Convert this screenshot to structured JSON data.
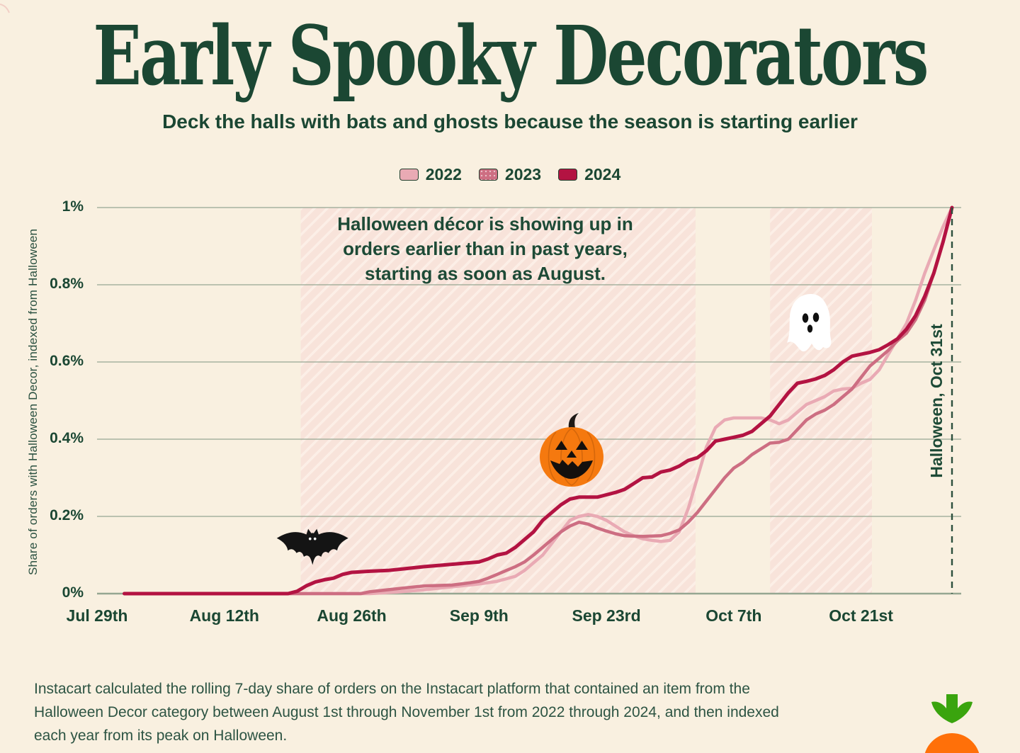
{
  "title": "Early Spooky Decorators",
  "subtitle": "Deck the halls with bats and ghosts because the season is starting earlier",
  "legend": {
    "items": [
      {
        "label": "2022",
        "color": "#e9aab4",
        "texture": "plain"
      },
      {
        "label": "2023",
        "color": "#cd6e82",
        "texture": "dotted"
      },
      {
        "label": "2024",
        "color": "#b31342",
        "texture": "solid"
      }
    ]
  },
  "annotation": "Halloween décor is showing up in\norders earlier than in past years,\nstarting as soon as August.",
  "y_axis_title": "Share of orders with Halloween Decor, indexed from Halloween",
  "halloween_line_label": "Halloween, Oct 31st",
  "footer": "Instacart calculated the rolling 7-day share of orders on the Instacart platform that contained an item from the Halloween Decor category between August 1st through November 1st from 2022 through 2024, and then indexed each year from its peak on Halloween.",
  "colors": {
    "background": "#f9f0e0",
    "ink": "#1b4733",
    "grid": "#96a692",
    "band_base": "#f8e3da",
    "band_stripe": "#fcefe7",
    "dashed_line": "#2c4f3d",
    "bat": "#141414",
    "pumpkin": "#f5790f",
    "pumpkin_stem": "#1f1a16",
    "ghost": "#ffffff",
    "logo_green": "#3aa40e",
    "logo_orange": "#ff7009"
  },
  "chart_data": {
    "type": "line",
    "title": "Early Spooky Decorators",
    "ylabel": "Share of orders with Halloween Decor, indexed from Halloween",
    "xlabel": "",
    "x_axis": {
      "unit": "days since Jul 29",
      "tick_days": [
        0,
        14,
        28,
        42,
        56,
        70,
        84
      ],
      "tick_labels": [
        "Jul 29th",
        "Aug 12th",
        "Aug 26th",
        "Sep 9th",
        "Sep 23rd",
        "Oct 7th",
        "Oct 21st"
      ],
      "end_day": 94
    },
    "y_axis": {
      "range": [
        0,
        1
      ],
      "unit": "percent of orders",
      "ticks": [
        {
          "value": 0,
          "label": "0%"
        },
        {
          "value": 0.2,
          "label": "0.2%"
        },
        {
          "value": 0.4,
          "label": "0.4%"
        },
        {
          "value": 0.6,
          "label": "0.6%"
        },
        {
          "value": 0.8,
          "label": "0.8%"
        },
        {
          "value": 1,
          "label": "1%"
        }
      ]
    },
    "grid": true,
    "legend_position": "top",
    "halloween_marker": {
      "day": 94,
      "label": "Halloween, Oct 31st"
    },
    "shaded_bands_days": [
      [
        22.4,
        65.8
      ],
      [
        74,
        85.2
      ]
    ],
    "series": [
      {
        "name": "2022",
        "color": "#e9aab4",
        "width": 4.5,
        "points": [
          [
            3,
            0
          ],
          [
            30,
            0
          ],
          [
            33,
            0.004
          ],
          [
            36,
            0.01
          ],
          [
            38,
            0.015
          ],
          [
            40,
            0.02
          ],
          [
            42,
            0.025
          ],
          [
            44,
            0.032
          ],
          [
            46,
            0.045
          ],
          [
            47,
            0.06
          ],
          [
            48,
            0.08
          ],
          [
            49,
            0.1
          ],
          [
            50,
            0.13
          ],
          [
            51,
            0.16
          ],
          [
            52,
            0.19
          ],
          [
            53,
            0.2
          ],
          [
            54,
            0.205
          ],
          [
            55,
            0.2
          ],
          [
            56,
            0.19
          ],
          [
            57,
            0.175
          ],
          [
            58,
            0.16
          ],
          [
            59,
            0.15
          ],
          [
            60,
            0.142
          ],
          [
            61,
            0.138
          ],
          [
            62,
            0.135
          ],
          [
            63,
            0.138
          ],
          [
            64,
            0.16
          ],
          [
            65,
            0.22
          ],
          [
            66,
            0.3
          ],
          [
            67,
            0.38
          ],
          [
            68,
            0.43
          ],
          [
            69,
            0.45
          ],
          [
            70,
            0.455
          ],
          [
            73,
            0.455
          ],
          [
            74,
            0.45
          ],
          [
            75,
            0.44
          ],
          [
            76,
            0.45
          ],
          [
            77,
            0.47
          ],
          [
            78,
            0.49
          ],
          [
            79,
            0.5
          ],
          [
            80,
            0.51
          ],
          [
            81,
            0.525
          ],
          [
            82,
            0.53
          ],
          [
            83,
            0.532
          ],
          [
            84,
            0.545
          ],
          [
            85,
            0.555
          ],
          [
            86,
            0.58
          ],
          [
            87,
            0.62
          ],
          [
            88,
            0.66
          ],
          [
            89,
            0.7
          ],
          [
            90,
            0.76
          ],
          [
            91,
            0.83
          ],
          [
            92,
            0.89
          ],
          [
            93,
            0.95
          ],
          [
            94,
            1
          ]
        ]
      },
      {
        "name": "2023",
        "color": "#cd6e82",
        "width": 4.5,
        "points": [
          [
            3,
            0
          ],
          [
            29,
            0
          ],
          [
            30,
            0.005
          ],
          [
            32,
            0.01
          ],
          [
            34,
            0.015
          ],
          [
            36,
            0.02
          ],
          [
            39,
            0.022
          ],
          [
            41,
            0.028
          ],
          [
            42,
            0.032
          ],
          [
            43,
            0.04
          ],
          [
            44,
            0.05
          ],
          [
            45,
            0.06
          ],
          [
            46,
            0.07
          ],
          [
            47,
            0.082
          ],
          [
            48,
            0.1
          ],
          [
            49,
            0.12
          ],
          [
            50,
            0.14
          ],
          [
            51,
            0.16
          ],
          [
            52,
            0.175
          ],
          [
            53,
            0.185
          ],
          [
            54,
            0.18
          ],
          [
            55,
            0.17
          ],
          [
            56,
            0.162
          ],
          [
            57,
            0.155
          ],
          [
            58,
            0.15
          ],
          [
            60,
            0.148
          ],
          [
            62,
            0.15
          ],
          [
            63,
            0.156
          ],
          [
            64,
            0.165
          ],
          [
            65,
            0.185
          ],
          [
            66,
            0.21
          ],
          [
            67,
            0.24
          ],
          [
            68,
            0.27
          ],
          [
            69,
            0.3
          ],
          [
            70,
            0.325
          ],
          [
            71,
            0.34
          ],
          [
            72,
            0.36
          ],
          [
            73,
            0.375
          ],
          [
            74,
            0.39
          ],
          [
            75,
            0.392
          ],
          [
            76,
            0.4
          ],
          [
            77,
            0.425
          ],
          [
            78,
            0.45
          ],
          [
            79,
            0.465
          ],
          [
            80,
            0.475
          ],
          [
            81,
            0.49
          ],
          [
            82,
            0.51
          ],
          [
            83,
            0.53
          ],
          [
            84,
            0.56
          ],
          [
            85,
            0.59
          ],
          [
            86,
            0.61
          ],
          [
            87,
            0.63
          ],
          [
            88,
            0.655
          ],
          [
            89,
            0.675
          ],
          [
            90,
            0.71
          ],
          [
            91,
            0.76
          ],
          [
            92,
            0.83
          ],
          [
            93,
            0.91
          ],
          [
            94,
            1
          ]
        ]
      },
      {
        "name": "2024",
        "color": "#b31342",
        "width": 5,
        "points": [
          [
            3,
            0
          ],
          [
            21,
            0
          ],
          [
            22,
            0.006
          ],
          [
            23,
            0.02
          ],
          [
            24,
            0.03
          ],
          [
            25,
            0.036
          ],
          [
            26,
            0.04
          ],
          [
            27,
            0.05
          ],
          [
            28,
            0.055
          ],
          [
            30,
            0.058
          ],
          [
            32,
            0.06
          ],
          [
            34,
            0.065
          ],
          [
            36,
            0.07
          ],
          [
            38,
            0.074
          ],
          [
            40,
            0.078
          ],
          [
            42,
            0.082
          ],
          [
            43,
            0.09
          ],
          [
            44,
            0.1
          ],
          [
            45,
            0.105
          ],
          [
            46,
            0.12
          ],
          [
            47,
            0.14
          ],
          [
            48,
            0.16
          ],
          [
            49,
            0.19
          ],
          [
            50,
            0.21
          ],
          [
            51,
            0.23
          ],
          [
            52,
            0.245
          ],
          [
            53,
            0.25
          ],
          [
            55,
            0.25
          ],
          [
            56,
            0.256
          ],
          [
            57,
            0.262
          ],
          [
            58,
            0.27
          ],
          [
            59,
            0.285
          ],
          [
            60,
            0.3
          ],
          [
            61,
            0.302
          ],
          [
            62,
            0.315
          ],
          [
            63,
            0.32
          ],
          [
            64,
            0.33
          ],
          [
            65,
            0.345
          ],
          [
            66,
            0.352
          ],
          [
            67,
            0.37
          ],
          [
            68,
            0.395
          ],
          [
            69,
            0.4
          ],
          [
            70,
            0.405
          ],
          [
            71,
            0.41
          ],
          [
            72,
            0.42
          ],
          [
            73,
            0.44
          ],
          [
            74,
            0.46
          ],
          [
            75,
            0.49
          ],
          [
            76,
            0.52
          ],
          [
            77,
            0.545
          ],
          [
            78,
            0.55
          ],
          [
            79,
            0.556
          ],
          [
            80,
            0.565
          ],
          [
            81,
            0.58
          ],
          [
            82,
            0.6
          ],
          [
            83,
            0.615
          ],
          [
            84,
            0.62
          ],
          [
            85,
            0.625
          ],
          [
            86,
            0.632
          ],
          [
            87,
            0.645
          ],
          [
            88,
            0.66
          ],
          [
            89,
            0.685
          ],
          [
            90,
            0.72
          ],
          [
            91,
            0.77
          ],
          [
            92,
            0.83
          ],
          [
            93,
            0.91
          ],
          [
            94,
            1
          ]
        ]
      }
    ]
  }
}
